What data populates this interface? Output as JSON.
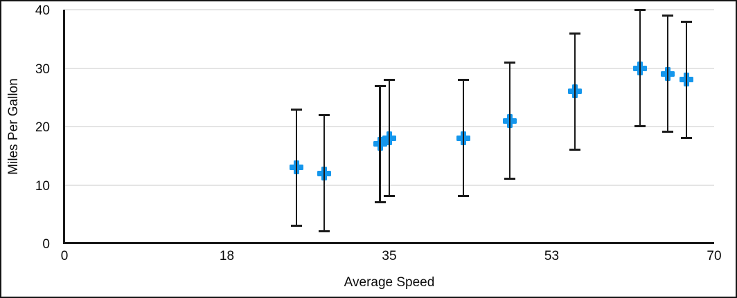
{
  "chart_data": {
    "type": "scatter",
    "title": "",
    "xlabel": "Average Speed",
    "ylabel": "Miles Per Gallon",
    "xlim": [
      0,
      70
    ],
    "ylim": [
      0,
      40
    ],
    "x_ticks": [
      {
        "value": 0,
        "label": "0"
      },
      {
        "value": 17.5,
        "label": "18"
      },
      {
        "value": 35,
        "label": "35"
      },
      {
        "value": 52.5,
        "label": "53"
      },
      {
        "value": 70,
        "label": "70"
      }
    ],
    "y_ticks": [
      {
        "value": 0,
        "label": "0"
      },
      {
        "value": 10,
        "label": "10"
      },
      {
        "value": 20,
        "label": "20"
      },
      {
        "value": 30,
        "label": "30"
      },
      {
        "value": 40,
        "label": "40"
      }
    ],
    "grid": "horizontal-only",
    "legend": "none",
    "series": [
      {
        "name": "Miles Per Gallon",
        "marker": "plus",
        "color": "#1496EC",
        "error_bars": {
          "type": "fixed",
          "plus": 10,
          "minus": 10
        },
        "points": [
          {
            "x": 25,
            "y": 13
          },
          {
            "x": 28,
            "y": 12
          },
          {
            "x": 34,
            "y": 17
          },
          {
            "x": 35,
            "y": 18
          },
          {
            "x": 43,
            "y": 18
          },
          {
            "x": 48,
            "y": 21
          },
          {
            "x": 55,
            "y": 26
          },
          {
            "x": 62,
            "y": 30
          },
          {
            "x": 65,
            "y": 29
          },
          {
            "x": 67,
            "y": 28
          }
        ]
      }
    ]
  },
  "colors": {
    "marker": "#1496EC",
    "axis": "#1a1a1a",
    "gridline": "#e4e4e4",
    "background": "#ffffff",
    "border": "#141414",
    "text": "#0a0a0a"
  }
}
